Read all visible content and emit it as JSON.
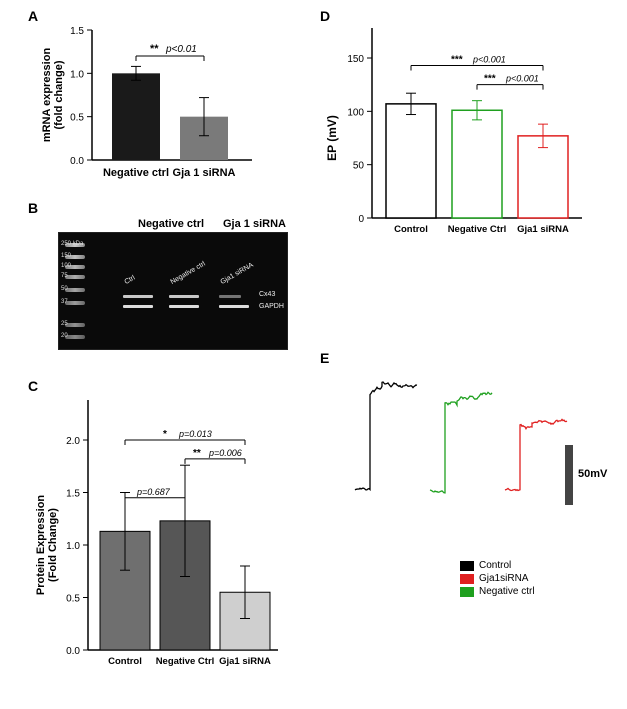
{
  "panels": {
    "A": {
      "label": "A"
    },
    "B": {
      "label": "B"
    },
    "C": {
      "label": "C"
    },
    "D": {
      "label": "D"
    },
    "E": {
      "label": "E"
    }
  },
  "chartA": {
    "type": "bar",
    "ylabel": "mRNA expression\n(fold change)",
    "categories": [
      "Negative ctrl",
      "Gja 1 siRNA"
    ],
    "values": [
      1.0,
      0.5
    ],
    "errors": [
      0.08,
      0.22
    ],
    "bar_colors": [
      "#1a1a1a",
      "#7a7a7a"
    ],
    "ylim": [
      0,
      1.5
    ],
    "yticks": [
      0.0,
      0.5,
      1.0,
      1.5
    ],
    "sig": {
      "label": "**",
      "ptext": "p<0.01"
    },
    "label_fontsize": 11,
    "tick_fontsize": 10,
    "axis_color": "#000000"
  },
  "blotB": {
    "header_labels": [
      "Negative ctrl",
      "Gja 1 siRNA"
    ],
    "ladder_kda": [
      "250 kDa",
      "150",
      "100",
      "75",
      "50",
      "37",
      "25",
      "20"
    ],
    "lane_labels": [
      "Ctrl",
      "Negative ctrl",
      "Gja1 siRNA"
    ],
    "band_labels": [
      "Cx43",
      "GAPDH"
    ],
    "background": "#0a0a0a"
  },
  "chartC": {
    "type": "bar",
    "ylabel": "Protein Expression\n(Fold Change)",
    "categories": [
      "Control",
      "Negative Ctrl",
      "Gja1 siRNA"
    ],
    "values": [
      1.13,
      1.23,
      0.55
    ],
    "errors": [
      0.37,
      0.53,
      0.25
    ],
    "bar_colors": [
      "#6f6f6f",
      "#565656",
      "#cfcfcf"
    ],
    "bar_stroke": "#000000",
    "ylim": [
      0,
      2.0
    ],
    "yticks": [
      0.0,
      0.5,
      1.0,
      1.5,
      2.0
    ],
    "sigs": [
      {
        "from": 0,
        "to": 1,
        "label": "",
        "ptext": "p=0.687",
        "y": 1.45
      },
      {
        "from": 1,
        "to": 2,
        "label": "**",
        "ptext": "p=0.006",
        "y": 1.82
      },
      {
        "from": 0,
        "to": 2,
        "label": "*",
        "ptext": "p=0.013",
        "y": 2.0
      }
    ],
    "label_fontsize": 11,
    "tick_fontsize": 10
  },
  "chartD": {
    "type": "bar",
    "ylabel": "EP (mV)",
    "categories": [
      "Control",
      "Negative Ctrl",
      "Gja1 siRNA"
    ],
    "values": [
      107,
      101,
      77
    ],
    "errors": [
      10,
      9,
      11
    ],
    "bar_colors": [
      "#ffffff",
      "#ffffff",
      "#ffffff"
    ],
    "bar_strokes": [
      "#000000",
      "#1fa01f",
      "#e02020"
    ],
    "ylim": [
      0,
      150
    ],
    "yticks": [
      0,
      50,
      100,
      150
    ],
    "sigs": [
      {
        "from": 1,
        "to": 2,
        "label": "***",
        "ptext": "p<0.001",
        "y": 125
      },
      {
        "from": 0,
        "to": 2,
        "label": "***",
        "ptext": "p<0.001",
        "y": 143
      }
    ],
    "label_fontsize": 11,
    "tick_fontsize": 10
  },
  "tracesE": {
    "scale_label": "50mV",
    "scale_color": "#444444",
    "traces": [
      {
        "name": "Control",
        "color": "#000000"
      },
      {
        "name": "Negative ctrl",
        "color": "#1fa01f"
      },
      {
        "name": "Gja1siRNA",
        "color": "#e02020"
      }
    ]
  },
  "legend": {
    "items": [
      {
        "label": "Control",
        "color": "#000000"
      },
      {
        "label": "Gja1siRNA",
        "color": "#e02020"
      },
      {
        "label": "Negative ctrl",
        "color": "#1fa01f"
      }
    ]
  }
}
